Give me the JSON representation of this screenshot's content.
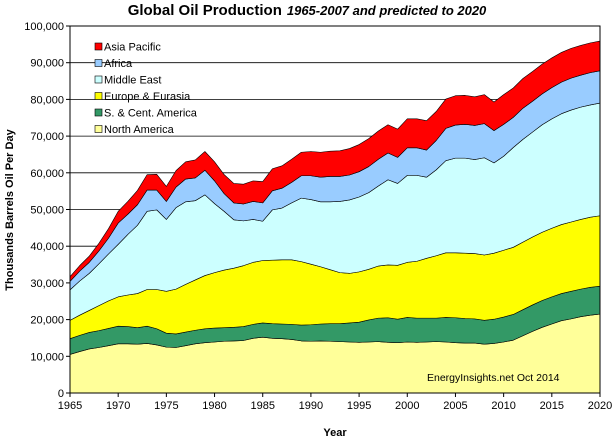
{
  "chart_data": {
    "type": "area",
    "stacked": true,
    "title": "Global Oil Production",
    "subtitle": "1965-2007 and predicted  to 2020",
    "xlabel": "Year",
    "ylabel": "Thousands Barrels Oil Per Day",
    "xlim": [
      1965,
      2020
    ],
    "ylim": [
      0,
      100000
    ],
    "x_ticks": [
      1965,
      1970,
      1975,
      1980,
      1985,
      1990,
      1995,
      2000,
      2005,
      2010,
      2015,
      2020
    ],
    "y_ticks": [
      0,
      10000,
      20000,
      30000,
      40000,
      50000,
      60000,
      70000,
      80000,
      90000,
      100000
    ],
    "y_tick_labels": [
      "0",
      "10,000",
      "20,000",
      "30,000",
      "40,000",
      "50,000",
      "60,000",
      "70,000",
      "80,000",
      "90,000",
      "100,000"
    ],
    "grid": true,
    "legend_position": "top-left",
    "credit": "EnergyInsights.net   Oct 2014",
    "years": [
      1965,
      1966,
      1967,
      1968,
      1969,
      1970,
      1971,
      1972,
      1973,
      1974,
      1975,
      1976,
      1977,
      1978,
      1979,
      1980,
      1981,
      1982,
      1983,
      1984,
      1985,
      1986,
      1987,
      1988,
      1989,
      1990,
      1991,
      1992,
      1993,
      1994,
      1995,
      1996,
      1997,
      1998,
      1999,
      2000,
      2001,
      2002,
      2003,
      2004,
      2005,
      2006,
      2007,
      2008,
      2009,
      2010,
      2011,
      2012,
      2013,
      2014,
      2015,
      2016,
      2017,
      2018,
      2019,
      2020
    ],
    "series": [
      {
        "name": "North America",
        "color": "#ffff99",
        "values": [
          10500,
          11300,
          12000,
          12400,
          12900,
          13400,
          13400,
          13300,
          13500,
          13100,
          12500,
          12400,
          12900,
          13400,
          13700,
          13900,
          14100,
          14200,
          14300,
          14900,
          15200,
          14900,
          14800,
          14600,
          14200,
          14100,
          14200,
          14100,
          14000,
          13900,
          13800,
          13900,
          14000,
          13800,
          13700,
          13900,
          13800,
          13900,
          14000,
          13900,
          13700,
          13600,
          13600,
          13300,
          13500,
          13900,
          14400,
          15600,
          16800,
          17900,
          18800,
          19700,
          20200,
          20800,
          21200,
          21500
        ]
      },
      {
        "name": "S. & Cent. America",
        "color": "#339966",
        "values": [
          4300,
          4400,
          4500,
          4600,
          4700,
          4800,
          4700,
          4500,
          4700,
          4400,
          3800,
          3700,
          3700,
          3700,
          3800,
          3800,
          3700,
          3700,
          3800,
          3800,
          3900,
          4000,
          4000,
          4100,
          4300,
          4500,
          4600,
          4800,
          4900,
          5200,
          5500,
          6000,
          6400,
          6700,
          6400,
          6700,
          6600,
          6500,
          6400,
          6700,
          6800,
          6700,
          6600,
          6500,
          6600,
          6800,
          7000,
          7100,
          7200,
          7300,
          7400,
          7400,
          7500,
          7500,
          7600,
          7600
        ]
      },
      {
        "name": "Europe & Eurasia",
        "color": "#ffff00",
        "values": [
          5000,
          5500,
          6000,
          6800,
          7500,
          8000,
          8600,
          9300,
          10000,
          10700,
          11400,
          12200,
          13000,
          13700,
          14500,
          15100,
          15700,
          16100,
          16600,
          16900,
          17000,
          17300,
          17500,
          17600,
          17300,
          16500,
          15600,
          14700,
          13900,
          13500,
          13700,
          13800,
          14200,
          14400,
          14700,
          15000,
          15500,
          16300,
          17000,
          17600,
          17700,
          17800,
          17800,
          17800,
          18000,
          18200,
          18300,
          18400,
          18500,
          18600,
          18700,
          18800,
          18900,
          19000,
          19100,
          19200
        ]
      },
      {
        "name": "Middle East",
        "color": "#ccffff",
        "values": [
          8300,
          9300,
          10100,
          11400,
          12800,
          14300,
          16500,
          18600,
          21300,
          21700,
          19600,
          22200,
          22500,
          21600,
          22000,
          18800,
          16000,
          13200,
          12200,
          11700,
          10700,
          13700,
          14100,
          15500,
          17300,
          17600,
          17700,
          18500,
          19400,
          20000,
          20400,
          20900,
          21800,
          23200,
          22300,
          23700,
          23400,
          22100,
          23400,
          25100,
          25800,
          25900,
          25600,
          26500,
          24600,
          25600,
          27200,
          28000,
          28600,
          29300,
          29800,
          30200,
          30500,
          30600,
          30600,
          30700
        ]
      },
      {
        "name": "Africa",
        "color": "#99ccff",
        "values": [
          2300,
          2700,
          3000,
          3500,
          4300,
          5800,
          5500,
          5600,
          5800,
          5400,
          4900,
          5600,
          6200,
          6200,
          6700,
          6200,
          4800,
          4600,
          4600,
          4900,
          5000,
          5200,
          5400,
          5600,
          6100,
          6500,
          6700,
          6900,
          6800,
          6800,
          6900,
          7100,
          7300,
          7300,
          7100,
          7500,
          7500,
          7400,
          8000,
          8800,
          9000,
          9200,
          9300,
          9300,
          8800,
          8700,
          8200,
          8500,
          8400,
          8400,
          8500,
          8600,
          8700,
          8700,
          8800,
          8800
        ]
      },
      {
        "name": "Asia Pacific",
        "color": "#ff0000",
        "values": [
          1300,
          1500,
          1700,
          2100,
          2600,
          3200,
          3500,
          3900,
          4200,
          4300,
          4100,
          4500,
          4700,
          4900,
          5100,
          5200,
          5200,
          5300,
          5400,
          5600,
          5800,
          6000,
          6100,
          6300,
          6400,
          6600,
          6800,
          6900,
          7000,
          7200,
          7400,
          7600,
          7700,
          7700,
          7700,
          7900,
          7900,
          8000,
          7900,
          8000,
          8000,
          7900,
          7800,
          7900,
          7800,
          8100,
          8000,
          8100,
          8100,
          8100,
          8100,
          8100,
          8100,
          8100,
          8100,
          8100
        ]
      }
    ]
  }
}
